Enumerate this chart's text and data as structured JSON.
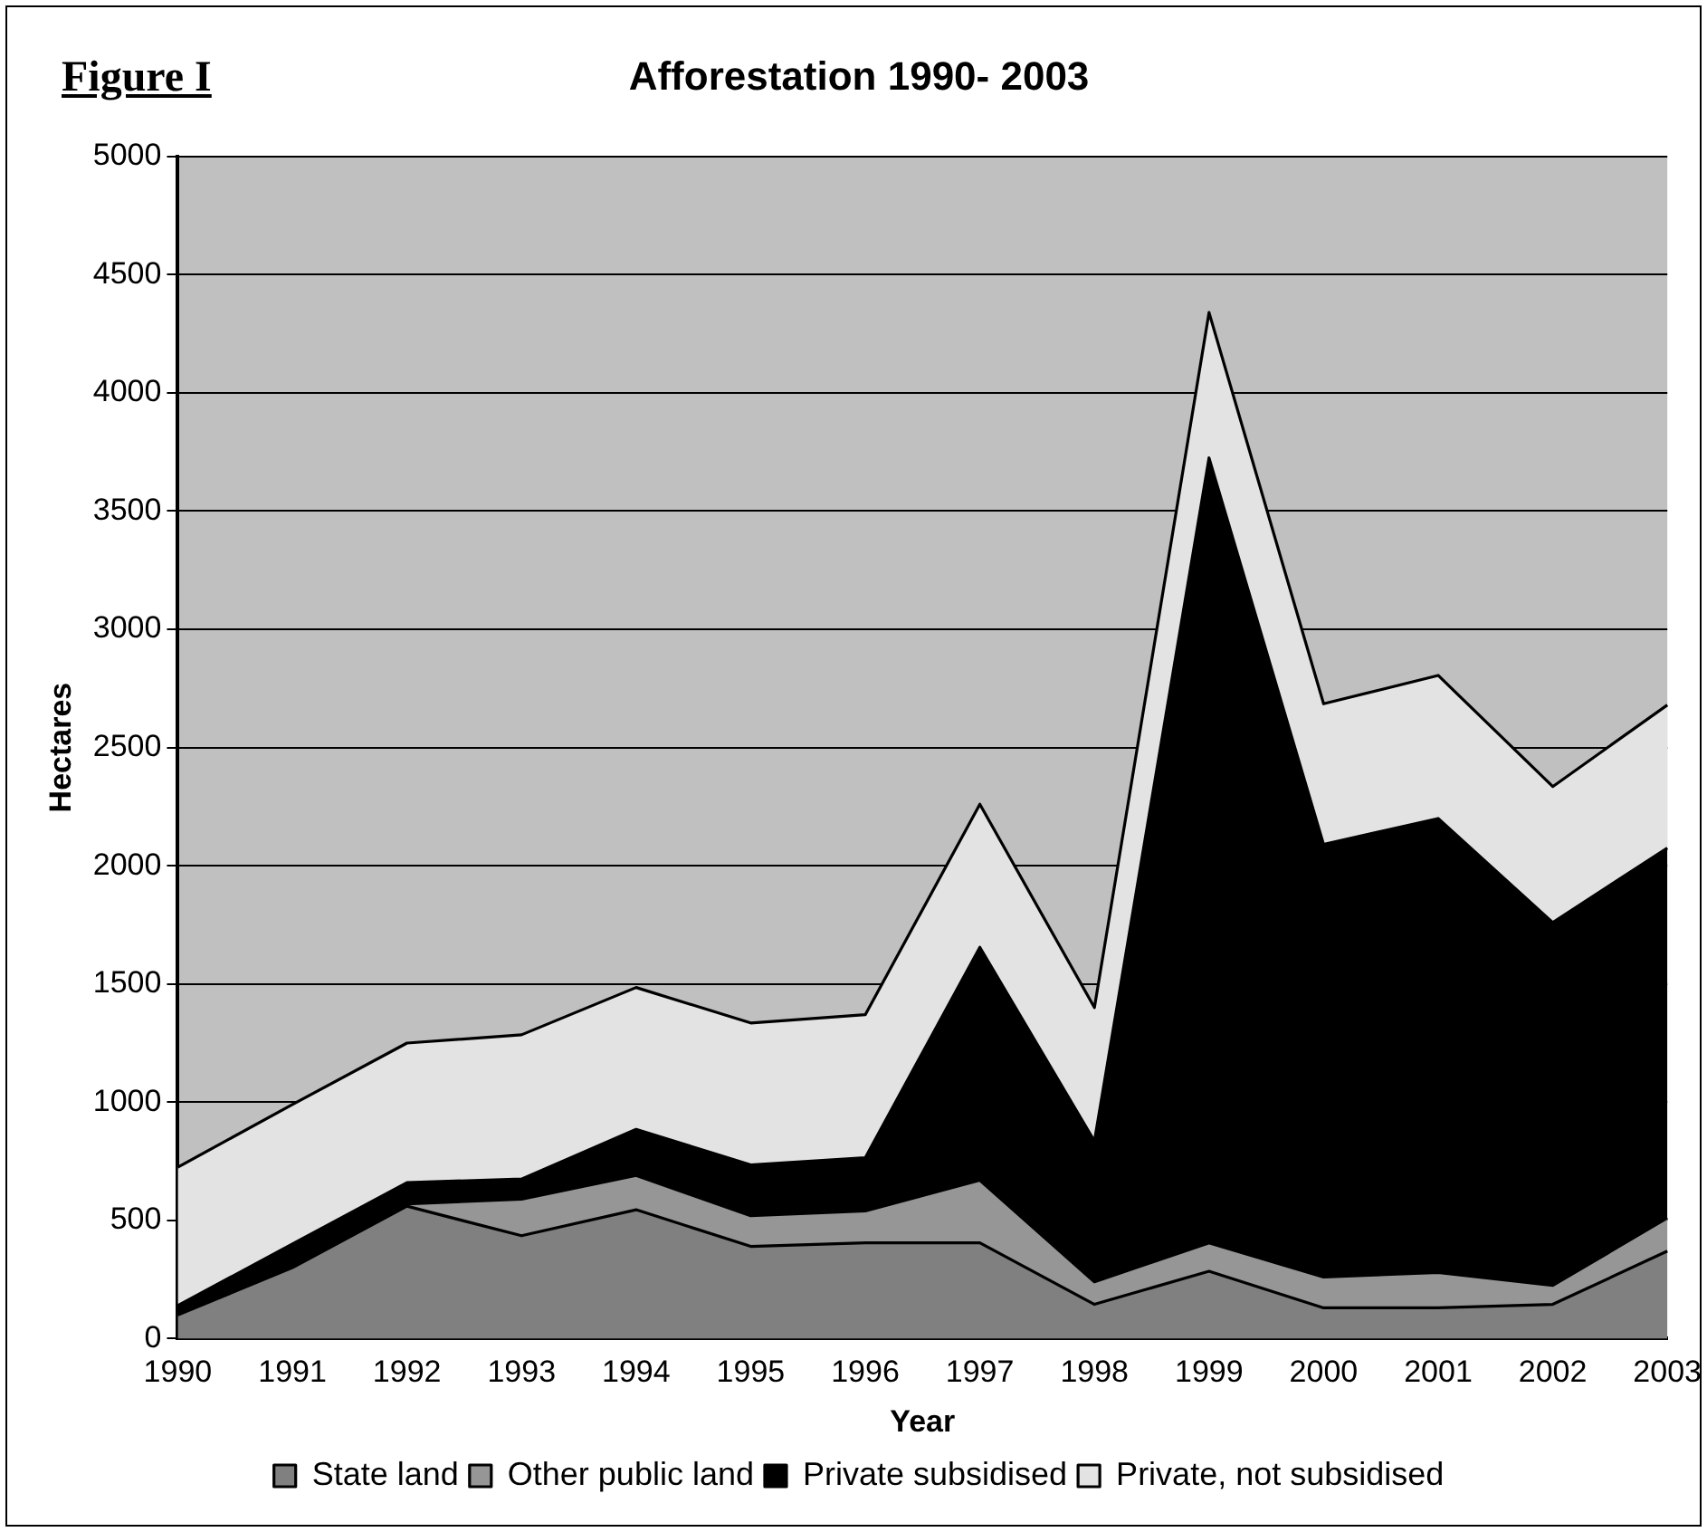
{
  "chart_data": {
    "type": "area",
    "title": "Afforestation 1990- 2003",
    "xlabel": "Year",
    "ylabel": "Hectares",
    "annotations": [
      "Figure I"
    ],
    "categories": [
      "1990",
      "1991",
      "1992",
      "1993",
      "1994",
      "1995",
      "1996",
      "1997",
      "1998",
      "1999",
      "2000",
      "2001",
      "2002",
      "2003"
    ],
    "stacked": true,
    "series": [
      {
        "name": "State land",
        "color": "#808080",
        "values": [
          100,
          300,
          560,
          435,
          545,
          390,
          405,
          405,
          145,
          285,
          130,
          130,
          145,
          370
        ]
      },
      {
        "name": "Other public land",
        "color": "#969696",
        "values": [
          0,
          0,
          10,
          155,
          145,
          130,
          135,
          265,
          95,
          120,
          130,
          150,
          80,
          140
        ]
      },
      {
        "name": "Private subsidised",
        "color": "#000000",
        "values": [
          40,
          100,
          90,
          85,
          195,
          215,
          225,
          985,
          595,
          3320,
          1830,
          1920,
          1535,
          1565
        ]
      },
      {
        "name": "Private, not subsidised",
        "color": "#e3e3e3",
        "values": [
          585,
          590,
          590,
          610,
          600,
          600,
          605,
          605,
          565,
          615,
          595,
          605,
          575,
          605
        ]
      }
    ],
    "ylim": [
      0,
      5000
    ],
    "yticks": [
      0,
      500,
      1000,
      1500,
      2000,
      2500,
      3000,
      3500,
      4000,
      4500,
      5000
    ],
    "grid": "y",
    "legend": "bottom"
  }
}
